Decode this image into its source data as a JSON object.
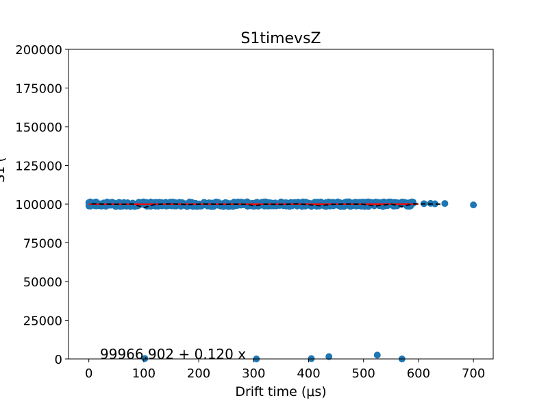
{
  "chart_data": {
    "type": "scatter",
    "title": "S1timevsZ",
    "xlabel": "Drift time (μs)",
    "ylabel": "S1 (",
    "xlim": [
      -37,
      736
    ],
    "ylim": [
      0,
      200000
    ],
    "x_ticks": [
      0,
      100,
      200,
      300,
      400,
      500,
      600,
      700
    ],
    "y_ticks": [
      0,
      25000,
      50000,
      75000,
      100000,
      125000,
      150000,
      175000,
      200000
    ],
    "annotation": "99966.902 + 0.120 x",
    "fit": {
      "intercept": 99966.902,
      "slope": 0.12,
      "x_range": [
        0,
        600
      ]
    },
    "main_band": {
      "x_range": [
        0,
        590
      ],
      "y_center": 100000,
      "y_spread": 1500
    },
    "outliers": [
      {
        "x": 610,
        "y": 100300
      },
      {
        "x": 622,
        "y": 100500
      },
      {
        "x": 630,
        "y": 100200
      },
      {
        "x": 648,
        "y": 100400
      },
      {
        "x": 700,
        "y": 99500
      },
      {
        "x": 102,
        "y": 300
      },
      {
        "x": 305,
        "y": 0
      },
      {
        "x": 405,
        "y": 200
      },
      {
        "x": 437,
        "y": 1500
      },
      {
        "x": 525,
        "y": 2500
      },
      {
        "x": 570,
        "y": 0
      }
    ],
    "profile": [
      {
        "x": 5,
        "y": 100200
      },
      {
        "x": 30,
        "y": 100000
      },
      {
        "x": 60,
        "y": 99900
      },
      {
        "x": 80,
        "y": 100100
      },
      {
        "x": 100,
        "y": 97700
      },
      {
        "x": 120,
        "y": 99800
      },
      {
        "x": 150,
        "y": 100200
      },
      {
        "x": 180,
        "y": 99700
      },
      {
        "x": 210,
        "y": 100100
      },
      {
        "x": 240,
        "y": 99900
      },
      {
        "x": 270,
        "y": 100000
      },
      {
        "x": 290,
        "y": 99800
      },
      {
        "x": 300,
        "y": 98800
      },
      {
        "x": 320,
        "y": 100000
      },
      {
        "x": 350,
        "y": 99800
      },
      {
        "x": 380,
        "y": 100200
      },
      {
        "x": 400,
        "y": 99600
      },
      {
        "x": 420,
        "y": 98900
      },
      {
        "x": 440,
        "y": 99800
      },
      {
        "x": 470,
        "y": 100100
      },
      {
        "x": 500,
        "y": 99900
      },
      {
        "x": 520,
        "y": 98700
      },
      {
        "x": 550,
        "y": 100000
      },
      {
        "x": 570,
        "y": 98500
      },
      {
        "x": 590,
        "y": 100200
      },
      {
        "x": 610,
        "y": 100100
      },
      {
        "x": 640,
        "y": 100000
      }
    ],
    "colors": {
      "points": "#1f77b4",
      "fit": "#ff0000",
      "profile": "#000000"
    }
  }
}
